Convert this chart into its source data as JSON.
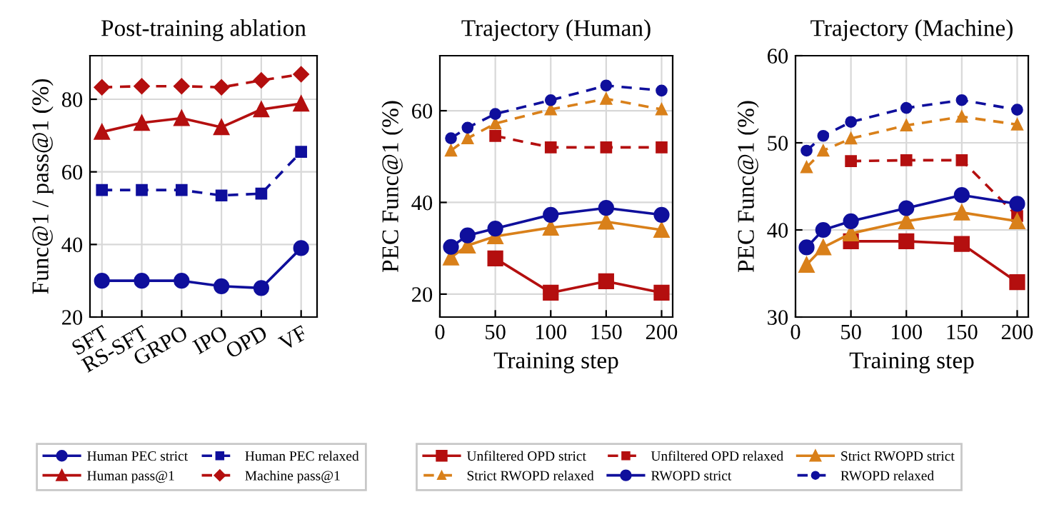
{
  "chart_data": [
    {
      "type": "line",
      "title": "Post-training ablation",
      "ylabel": "Func@1 / pass@1 (%)",
      "categories": [
        "SFT",
        "RS-SFT",
        "GRPO",
        "IPO",
        "OPD",
        "VF"
      ],
      "ylim": [
        20,
        92
      ],
      "yticks": [
        20,
        40,
        60,
        80
      ],
      "grid": true,
      "legend": "bottom",
      "series": [
        {
          "name": "Human PEC strict",
          "color": "#0f0f9c",
          "marker": "circle",
          "line_style": "solid",
          "values": [
            30,
            30,
            30,
            28.5,
            28,
            39
          ]
        },
        {
          "name": "Human PEC relaxed",
          "color": "#0f0f9c",
          "marker": "square",
          "line_style": "dashed",
          "values": [
            55,
            55,
            55,
            53.5,
            54,
            65.5
          ]
        },
        {
          "name": "Human pass@1",
          "color": "#b40f0f",
          "marker": "triangle",
          "line_style": "solid",
          "values": [
            71,
            73.5,
            74.8,
            72.3,
            77.2,
            78.8
          ]
        },
        {
          "name": "Machine pass@1",
          "color": "#b40f0f",
          "marker": "diamond",
          "line_style": "dashed",
          "values": [
            83.3,
            83.6,
            83.6,
            83.3,
            85.2,
            86.9
          ]
        }
      ]
    },
    {
      "type": "line",
      "title": "Trajectory (Human)",
      "xlabel": "Training step",
      "ylabel": "PEC Func@1 (%)",
      "xlim": [
        0,
        210
      ],
      "xticks": [
        0,
        50,
        100,
        150,
        200
      ],
      "ylim": [
        15,
        72
      ],
      "yticks": [
        20,
        40,
        60
      ],
      "grid": true,
      "legend": "bottom",
      "series": [
        {
          "name": "Unfiltered OPD strict",
          "color": "#b40f0f",
          "marker": "square",
          "line_style": "solid",
          "x": [
            50,
            100,
            150,
            200
          ],
          "values": [
            27.8,
            20.3,
            22.8,
            20.3
          ]
        },
        {
          "name": "Unfiltered OPD relaxed",
          "color": "#b40f0f",
          "marker": "square",
          "line_style": "dashed",
          "x": [
            50,
            100,
            150,
            200
          ],
          "values": [
            54.5,
            52,
            52,
            52
          ]
        },
        {
          "name": "Strict RWOPD strict",
          "color": "#d9801a",
          "marker": "triangle",
          "line_style": "solid",
          "x": [
            10,
            25,
            50,
            100,
            150,
            200
          ],
          "values": [
            28,
            30.6,
            32.6,
            34.5,
            35.8,
            34
          ]
        },
        {
          "name": "Strict RWOPD relaxed",
          "color": "#d9801a",
          "marker": "triangle",
          "line_style": "dashed",
          "x": [
            10,
            25,
            50,
            100,
            150,
            200
          ],
          "values": [
            51.3,
            54,
            57.2,
            60.3,
            62.6,
            60.3
          ]
        },
        {
          "name": "RWOPD strict",
          "color": "#0f0f9c",
          "marker": "circle",
          "line_style": "solid",
          "x": [
            10,
            25,
            50,
            100,
            150,
            200
          ],
          "values": [
            30.3,
            32.8,
            34.3,
            37.3,
            38.8,
            37.3
          ]
        },
        {
          "name": "RWOPD relaxed",
          "color": "#0f0f9c",
          "marker": "circle",
          "line_style": "dashed",
          "x": [
            10,
            25,
            50,
            100,
            150,
            200
          ],
          "values": [
            54,
            56.3,
            59.3,
            62.3,
            65.5,
            64.4
          ]
        }
      ]
    },
    {
      "type": "line",
      "title": "Trajectory (Machine)",
      "xlabel": "Training step",
      "ylabel": "PEC Func@1 (%)",
      "xlim": [
        0,
        210
      ],
      "xticks": [
        0,
        50,
        100,
        150,
        200
      ],
      "ylim": [
        30,
        60
      ],
      "yticks": [
        30,
        40,
        50,
        60
      ],
      "grid": true,
      "series": [
        {
          "color": "#b40f0f",
          "marker": "square",
          "line_style": "solid",
          "x": [
            50,
            100,
            150,
            200
          ],
          "values": [
            38.7,
            38.7,
            38.4,
            34
          ]
        },
        {
          "color": "#b40f0f",
          "marker": "square",
          "line_style": "dashed",
          "x": [
            50,
            100,
            150,
            200
          ],
          "values": [
            47.9,
            48,
            48,
            41.6
          ]
        },
        {
          "color": "#d9801a",
          "marker": "triangle",
          "line_style": "solid",
          "x": [
            10,
            25,
            50,
            100,
            150,
            200
          ],
          "values": [
            36,
            38,
            39.6,
            41,
            42,
            41
          ]
        },
        {
          "color": "#d9801a",
          "marker": "triangle",
          "line_style": "dashed",
          "x": [
            10,
            25,
            50,
            100,
            150,
            200
          ],
          "values": [
            47.2,
            49.1,
            50.5,
            52,
            53,
            52.1
          ]
        },
        {
          "color": "#0f0f9c",
          "marker": "circle",
          "line_style": "solid",
          "x": [
            10,
            25,
            50,
            100,
            150,
            200
          ],
          "values": [
            38,
            40,
            41,
            42.5,
            44,
            43
          ]
        },
        {
          "color": "#0f0f9c",
          "marker": "circle",
          "line_style": "dashed",
          "x": [
            10,
            25,
            50,
            100,
            150,
            200
          ],
          "values": [
            49.1,
            50.8,
            52.4,
            54,
            54.9,
            53.8
          ]
        }
      ]
    }
  ]
}
